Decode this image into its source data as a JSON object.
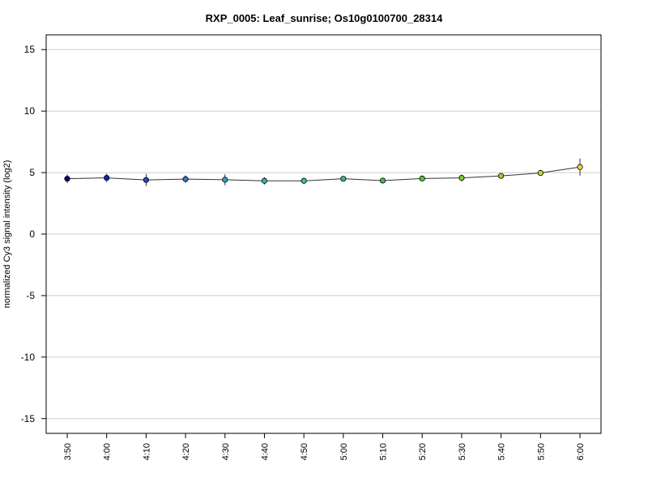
{
  "chart_data": {
    "type": "line",
    "title": "RXP_0005: Leaf_sunrise; Os10g0100700_28314",
    "xlabel": "",
    "ylabel": "normalized Cy3 signal intensity (log2)",
    "categories": [
      "3:50",
      "4:00",
      "4:10",
      "4:20",
      "4:30",
      "4:40",
      "4:50",
      "5:00",
      "5:10",
      "5:20",
      "5:30",
      "5:40",
      "5:50",
      "6:00"
    ],
    "y_ticks": [
      -15,
      -10,
      -5,
      0,
      5,
      10,
      15
    ],
    "ylim": [
      -16.2,
      16.2
    ],
    "grid": "horizontal",
    "series": [
      {
        "values": [
          4.5,
          4.57,
          4.4,
          4.47,
          4.42,
          4.33,
          4.33,
          4.5,
          4.35,
          4.52,
          4.57,
          4.73,
          4.97,
          5.45
        ],
        "errors": [
          0.35,
          0.35,
          0.5,
          0.3,
          0.45,
          0.3,
          0.12,
          0.18,
          0.15,
          0.18,
          0.28,
          0.18,
          0.15,
          0.7
        ],
        "colors": [
          "#00008B",
          "#1420B4",
          "#2946BE",
          "#2E78C4",
          "#32A0C8",
          "#32B4B4",
          "#32C0A0",
          "#32C07A",
          "#3CC050",
          "#50C832",
          "#78CC32",
          "#A0D232",
          "#C8D832",
          "#E8DC3C"
        ]
      }
    ]
  }
}
